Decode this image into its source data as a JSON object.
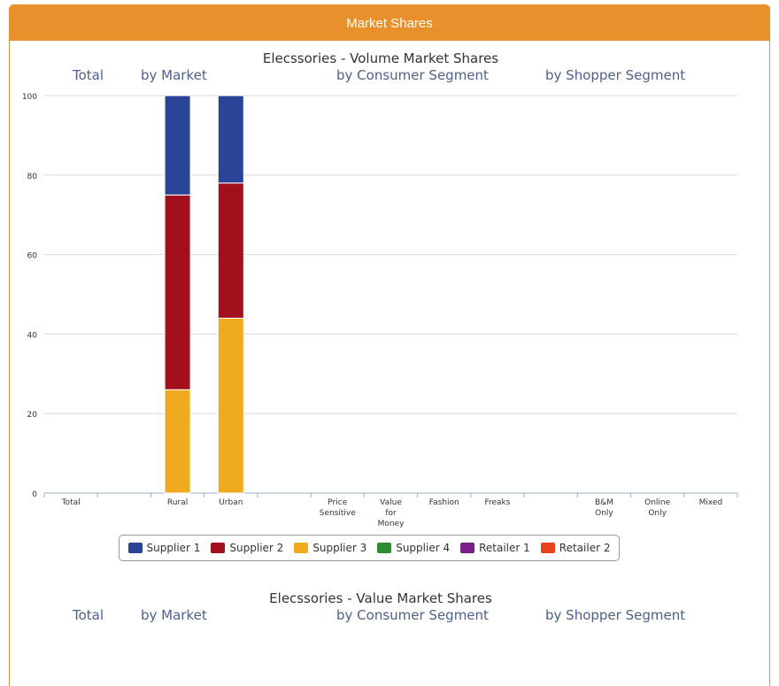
{
  "header": {
    "title": "Market Shares"
  },
  "chart_data": [
    {
      "type": "bar",
      "stacked": true,
      "title": "Elecssories - Volume Market Shares",
      "group_labels": [
        "Total",
        "by Market",
        "by Consumer Segment",
        "by Shopper Segment"
      ],
      "categories": [
        "Total",
        "",
        "Rural",
        "Urban",
        "",
        "Price Sensitive",
        "Value for Money",
        "Fashion",
        "Freaks",
        "",
        "B&M Only",
        "Online Only",
        "Mixed"
      ],
      "category_lines": [
        [
          "Total"
        ],
        [],
        [
          "Rural"
        ],
        [
          "Urban"
        ],
        [],
        [
          "Price",
          "Sensitive"
        ],
        [
          "Value",
          "for",
          "Money"
        ],
        [
          "Fashion"
        ],
        [
          "Freaks"
        ],
        [],
        [
          "B&M",
          "Only"
        ],
        [
          "Online",
          "Only"
        ],
        [
          "Mixed"
        ]
      ],
      "ylim": [
        0,
        100
      ],
      "yticks": [
        0,
        20,
        40,
        60,
        80,
        100
      ],
      "grid": true,
      "legend_position": "bottom-center",
      "series": [
        {
          "name": "Supplier 1",
          "color": "#2a4597",
          "values": [
            0,
            0,
            25,
            22,
            0,
            0,
            0,
            0,
            0,
            0,
            0,
            0,
            0
          ]
        },
        {
          "name": "Supplier 2",
          "color": "#a3101d",
          "values": [
            0,
            0,
            49,
            34,
            0,
            0,
            0,
            0,
            0,
            0,
            0,
            0,
            0
          ]
        },
        {
          "name": "Supplier 3",
          "color": "#f0aa1e",
          "values": [
            0,
            0,
            26,
            44,
            0,
            0,
            0,
            0,
            0,
            0,
            0,
            0,
            0
          ]
        },
        {
          "name": "Supplier 4",
          "color": "#2e8b34",
          "values": [
            0,
            0,
            0,
            0,
            0,
            0,
            0,
            0,
            0,
            0,
            0,
            0,
            0
          ]
        },
        {
          "name": "Retailer 1",
          "color": "#7a1f86",
          "values": [
            0,
            0,
            0,
            0,
            0,
            0,
            0,
            0,
            0,
            0,
            0,
            0,
            0
          ]
        },
        {
          "name": "Retailer 2",
          "color": "#e8431c",
          "values": [
            0,
            0,
            0,
            0,
            0,
            0,
            0,
            0,
            0,
            0,
            0,
            0,
            0
          ]
        }
      ]
    },
    {
      "type": "bar",
      "stacked": true,
      "title": "Elecssories - Value Market Shares",
      "group_labels": [
        "Total",
        "by Market",
        "by Consumer Segment",
        "by Shopper Segment"
      ]
    }
  ]
}
